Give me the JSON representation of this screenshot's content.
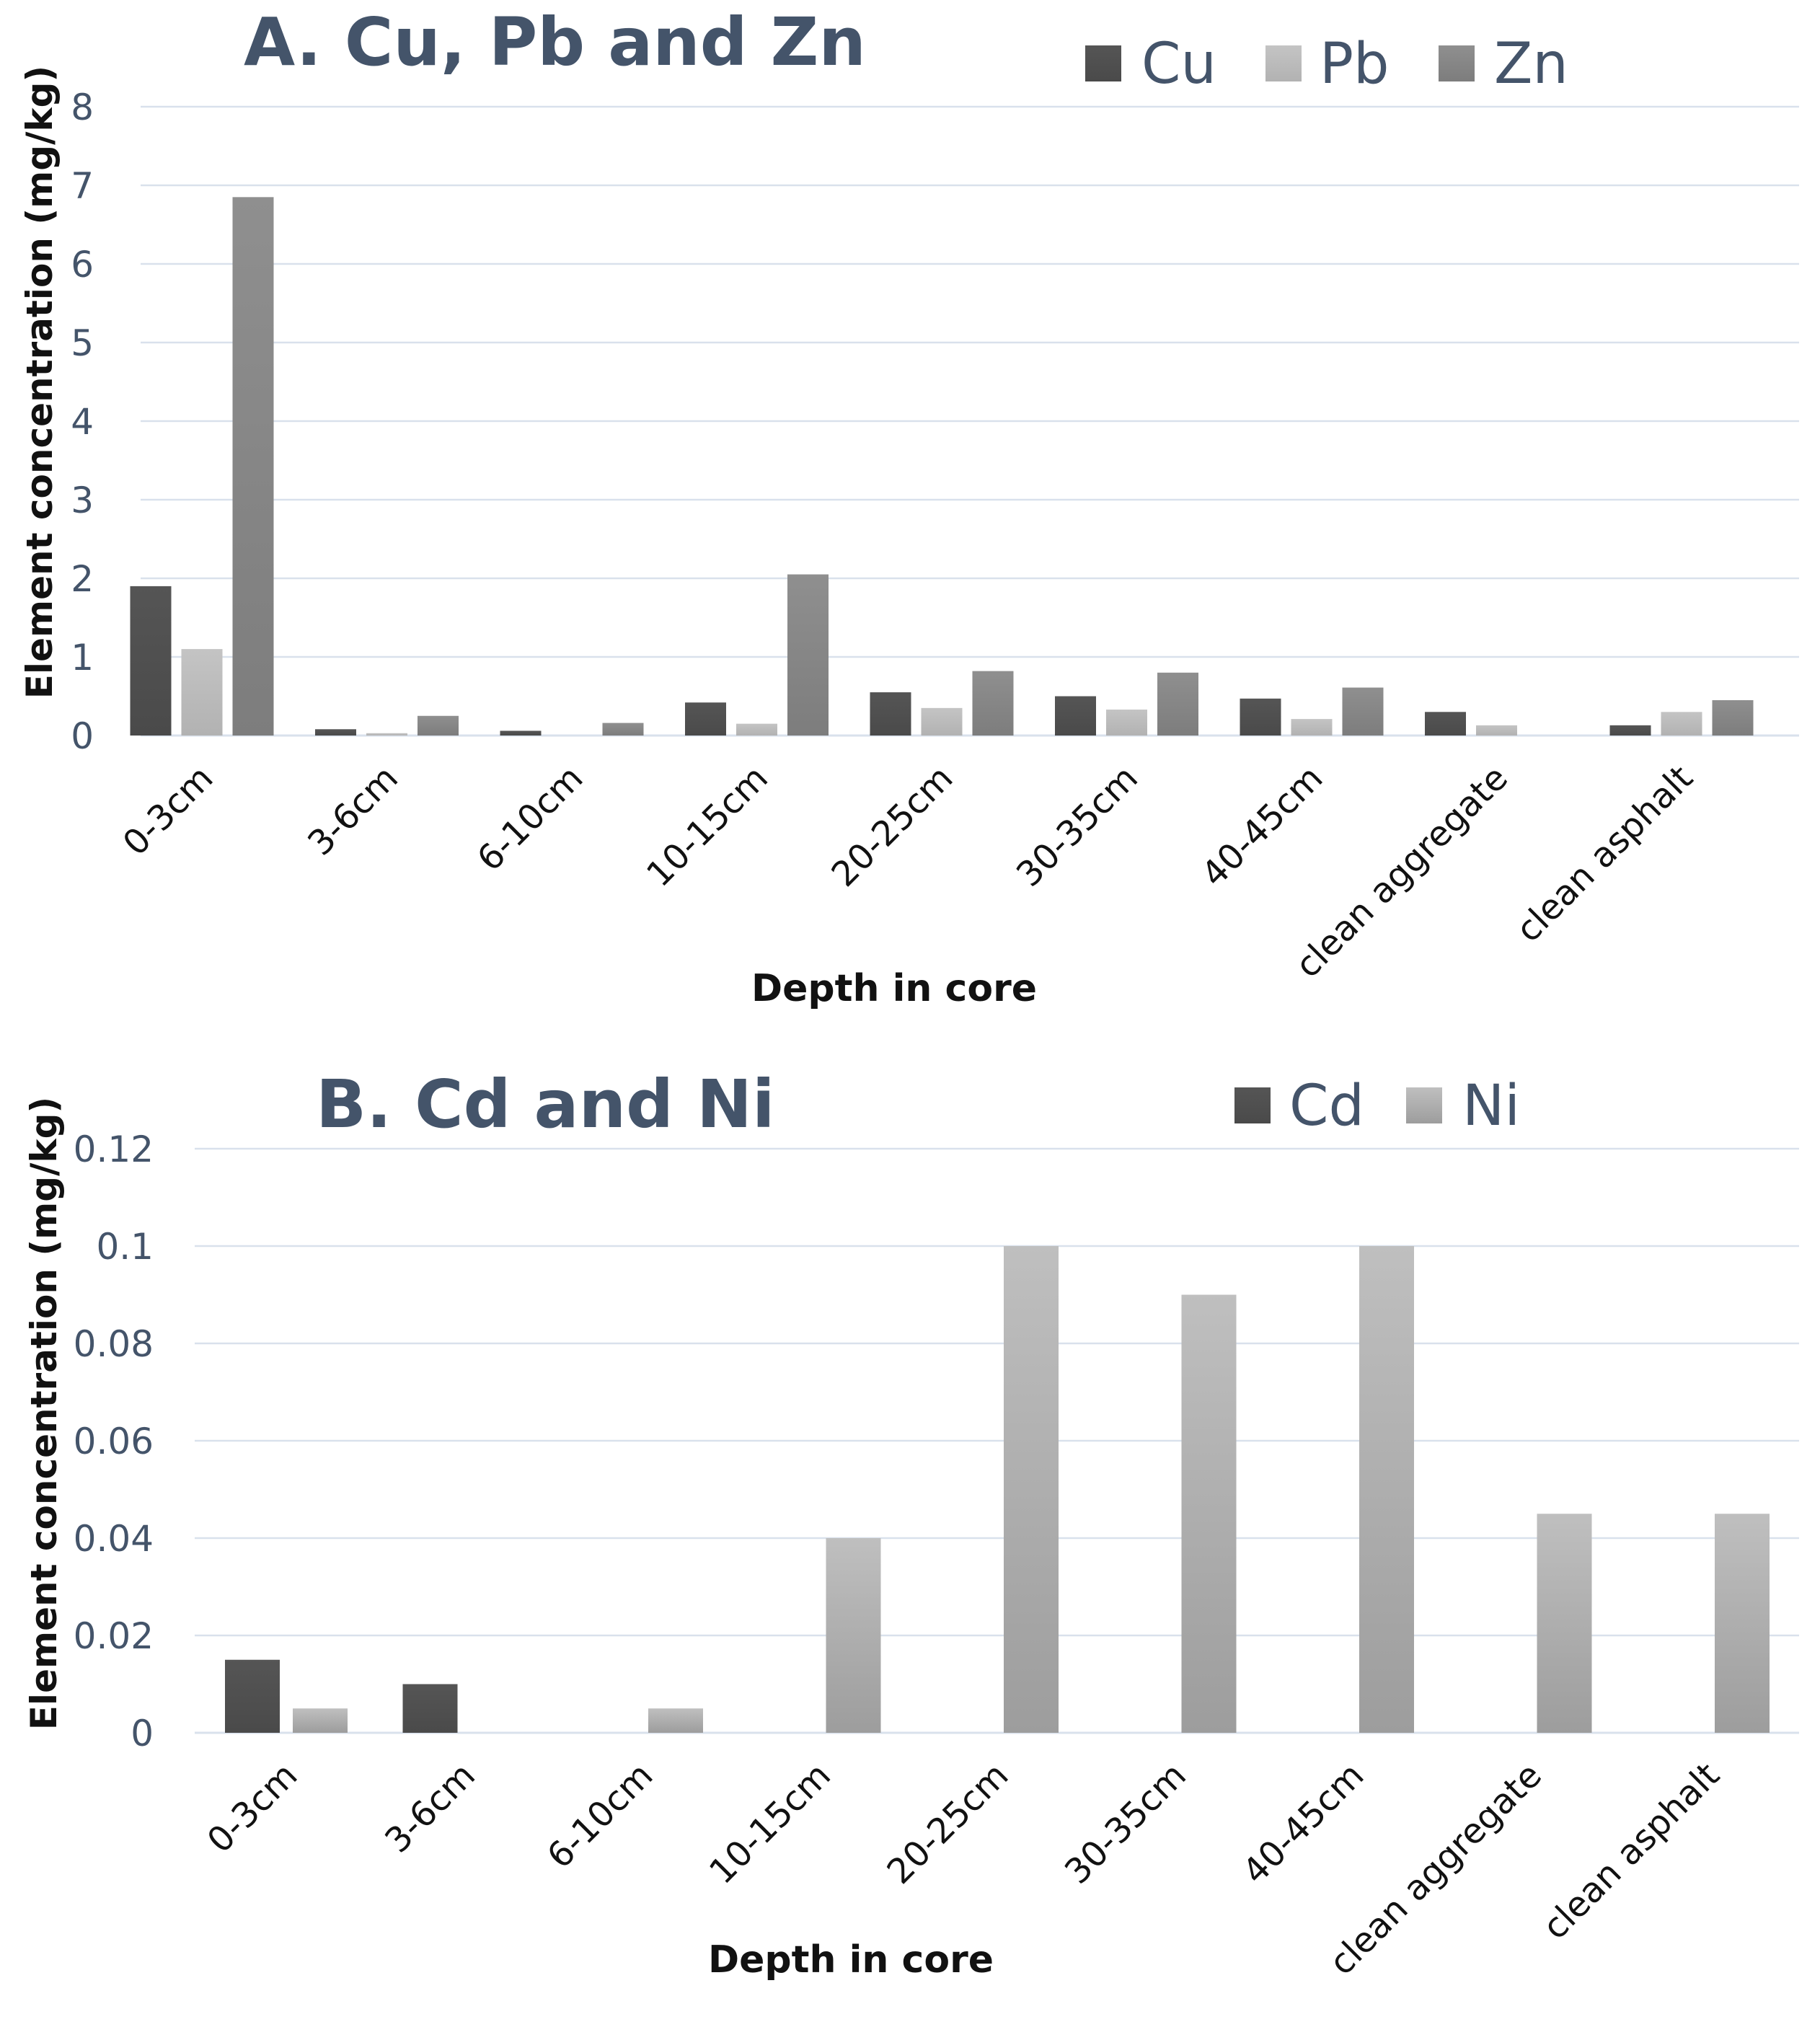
{
  "chart_data": [
    {
      "id": "A",
      "type": "bar",
      "title": "A. Cu, Pb and Zn",
      "xlabel": "Depth in core",
      "ylabel": "Element concentration (mg/kg)",
      "ylim": [
        0,
        8
      ],
      "yticks": [
        0,
        1,
        2,
        3,
        4,
        5,
        6,
        7,
        8
      ],
      "ytick_labels": [
        "0",
        "1",
        "2",
        "3",
        "4",
        "5",
        "6",
        "7",
        "8"
      ],
      "grid": true,
      "legend_position": "top-right",
      "categories": [
        "0-3cm",
        "3-6cm",
        "6-10cm",
        "10-15cm",
        "20-25cm",
        "30-35cm",
        "40-45cm",
        "clean aggregate",
        "clean asphalt"
      ],
      "series": [
        {
          "name": "Cu",
          "color": "#555555",
          "values": [
            1.9,
            0.08,
            0.06,
            0.42,
            0.55,
            0.5,
            0.47,
            0.3,
            0.13
          ]
        },
        {
          "name": "Pb",
          "color": "#bdbdbd",
          "values": [
            1.1,
            0.03,
            0.0,
            0.15,
            0.35,
            0.33,
            0.21,
            0.13,
            0.3
          ]
        },
        {
          "name": "Zn",
          "color": "#8a8a8a",
          "values": [
            6.85,
            0.25,
            0.16,
            2.05,
            0.82,
            0.8,
            0.61,
            0.0,
            0.45
          ]
        }
      ]
    },
    {
      "id": "B",
      "type": "bar",
      "title": "B. Cd and Ni",
      "xlabel": "Depth in core",
      "ylabel": "Element concentration (mg/kg)",
      "ylim": [
        0,
        0.12
      ],
      "yticks": [
        0,
        0.02,
        0.04,
        0.06,
        0.08,
        0.1,
        0.12
      ],
      "ytick_labels": [
        "0",
        "0.02",
        "0.04",
        "0.06",
        "0.08",
        "0.1",
        "0.12"
      ],
      "grid": true,
      "legend_position": "top-right",
      "categories": [
        "0-3cm",
        "3-6cm",
        "6-10cm",
        "10-15cm",
        "20-25cm",
        "30-35cm",
        "40-45cm",
        "clean aggregate",
        "clean asphalt"
      ],
      "series": [
        {
          "name": "Cd",
          "color": "#555555",
          "values": [
            0.015,
            0.01,
            0.0,
            0.0,
            0.0,
            0.0,
            0.0,
            0.0,
            0.0
          ]
        },
        {
          "name": "Ni",
          "color": "#b3b3b3",
          "values": [
            0.005,
            0.0,
            0.005,
            0.04,
            0.1,
            0.09,
            0.1,
            0.045,
            0.045
          ]
        }
      ]
    }
  ]
}
